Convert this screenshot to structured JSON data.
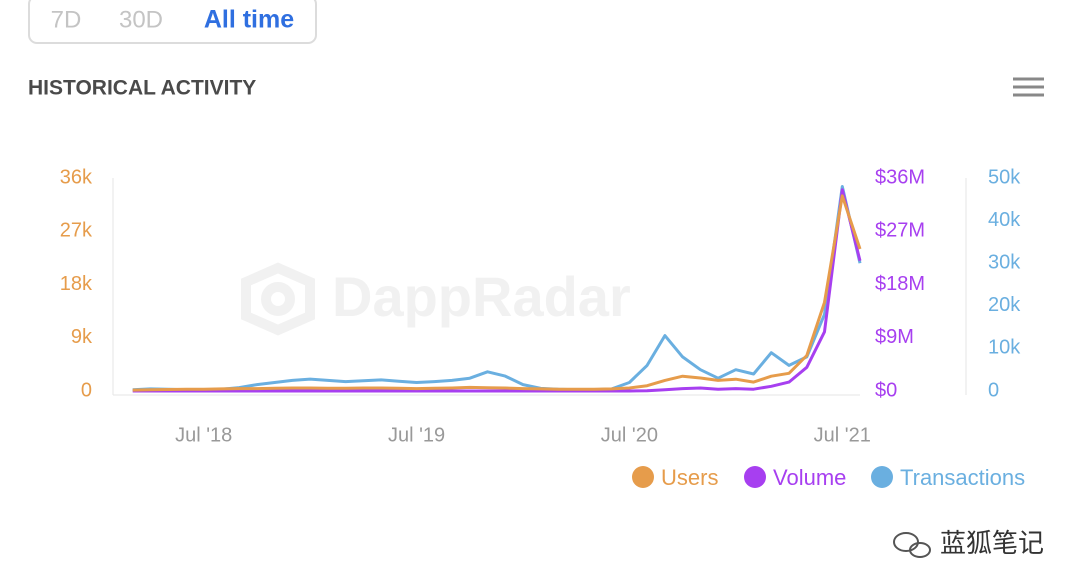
{
  "tabs": [
    "7D",
    "30D",
    "All time"
  ],
  "watermark": "DappRadar",
  "footer": "蓝狐笔记",
  "chart_data": {
    "type": "line",
    "title": "HISTORICAL ACTIVITY",
    "x": [
      "2018-03",
      "2018-04",
      "2018-05",
      "2018-06",
      "2018-07",
      "2018-08",
      "2018-09",
      "2018-10",
      "2018-11",
      "2018-12",
      "2019-01",
      "2019-02",
      "2019-03",
      "2019-04",
      "2019-05",
      "2019-06",
      "2019-07",
      "2019-08",
      "2019-09",
      "2019-10",
      "2019-11",
      "2019-12",
      "2020-01",
      "2020-02",
      "2020-03",
      "2020-04",
      "2020-05",
      "2020-06",
      "2020-07",
      "2020-08",
      "2020-09",
      "2020-10",
      "2020-11",
      "2020-12",
      "2021-01",
      "2021-02",
      "2021-03",
      "2021-04",
      "2021-05",
      "2021-06",
      "2021-07",
      "2021-08"
    ],
    "xlim": [
      "2018-02",
      "2021-08"
    ],
    "xticks": [
      {
        "value": "2018-07",
        "label": "Jul '18"
      },
      {
        "value": "2019-07",
        "label": "Jul '19"
      },
      {
        "value": "2020-07",
        "label": "Jul '20"
      },
      {
        "value": "2021-07",
        "label": "Jul '21"
      }
    ],
    "ylim": [
      0,
      36000
    ],
    "yticks": [
      0,
      {
        "value": 9000,
        "label": "9k"
      },
      {
        "value": 18000,
        "label": "18k"
      },
      {
        "value": 27000,
        "label": "27k"
      },
      {
        "value": 36000,
        "label": "36k"
      }
    ],
    "y2lim": [
      0,
      36000000
    ],
    "y2ticks": [
      {
        "value": 0,
        "label": "$0"
      },
      {
        "value": 9000000,
        "label": "$9M"
      },
      {
        "value": 18000000,
        "label": "$18M"
      },
      {
        "value": 27000000,
        "label": "$27M"
      },
      {
        "value": 36000000,
        "label": "$36M"
      }
    ],
    "y3lim": [
      0,
      50000
    ],
    "y3ticks": [
      0,
      {
        "value": 10000,
        "label": "10k"
      },
      {
        "value": 20000,
        "label": "20k"
      },
      {
        "value": 30000,
        "label": "30k"
      },
      {
        "value": 40000,
        "label": "40k"
      },
      {
        "value": 50000,
        "label": "50k"
      }
    ],
    "series": [
      {
        "name": "Users",
        "color": "#e69c4b",
        "axis": "y",
        "values": [
          150,
          200,
          250,
          300,
          300,
          350,
          400,
          400,
          450,
          500,
          500,
          450,
          450,
          500,
          500,
          450,
          400,
          450,
          500,
          600,
          550,
          500,
          400,
          350,
          300,
          300,
          300,
          350,
          500,
          900,
          1800,
          2500,
          2200,
          1800,
          2000,
          1500,
          2500,
          3000,
          6000,
          15000,
          33000,
          24000
        ]
      },
      {
        "name": "Volume",
        "color": "#a73ff0",
        "axis": "y2",
        "values": [
          0,
          0,
          0,
          0,
          0,
          0,
          0,
          0,
          0,
          0,
          0,
          0,
          0,
          0,
          0,
          0,
          0,
          0,
          0,
          0,
          0,
          0,
          0,
          0,
          0,
          0,
          0,
          0,
          0,
          50000,
          200000,
          400000,
          500000,
          300000,
          400000,
          300000,
          800000,
          1500000,
          4000000,
          10000000,
          34000000,
          22000000
        ]
      },
      {
        "name": "Transactions",
        "color": "#6aafe0",
        "axis": "y3",
        "values": [
          300,
          500,
          400,
          300,
          300,
          400,
          800,
          1500,
          2000,
          2500,
          2800,
          2500,
          2200,
          2400,
          2600,
          2300,
          2000,
          2200,
          2500,
          3000,
          4500,
          3500,
          1500,
          600,
          400,
          300,
          300,
          500,
          2000,
          6000,
          13000,
          8000,
          5000,
          3000,
          5000,
          4000,
          9000,
          6000,
          8000,
          18000,
          48000,
          30000
        ]
      }
    ]
  }
}
